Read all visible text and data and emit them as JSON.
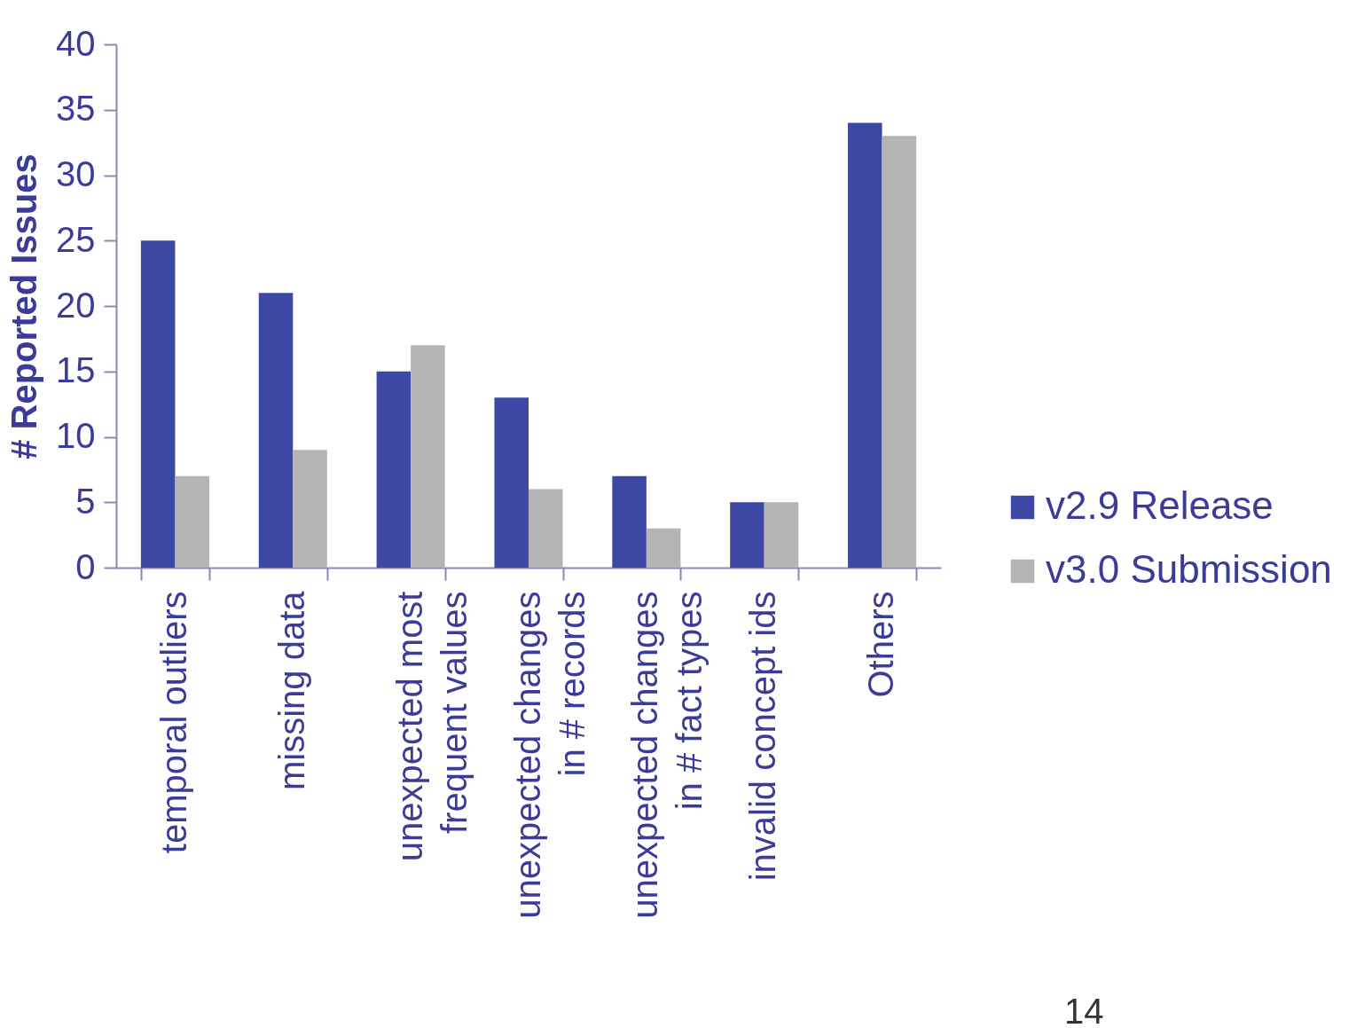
{
  "chart_data": {
    "type": "bar",
    "ylabel": "# Reported Issues",
    "categories": [
      "temporal outliers",
      "missing data",
      "unexpected most\nfrequent values",
      "unexpected changes\nin # records",
      "unexpected changes\nin # fact types",
      "invalid concept ids",
      "Others"
    ],
    "series": [
      {
        "name": "v2.9 Release",
        "color": "#3d48a5",
        "values": [
          25,
          21,
          15,
          13,
          7,
          5,
          34
        ]
      },
      {
        "name": "v3.0 Submission",
        "color": "#b4b4b4",
        "values": [
          7,
          9,
          17,
          6,
          3,
          5,
          33
        ]
      }
    ],
    "ylim": [
      0,
      40
    ],
    "yticks": [
      0,
      5,
      10,
      15,
      20,
      25,
      30,
      35,
      40
    ],
    "grid": false,
    "legend": "right",
    "annotations": [
      "14"
    ]
  }
}
